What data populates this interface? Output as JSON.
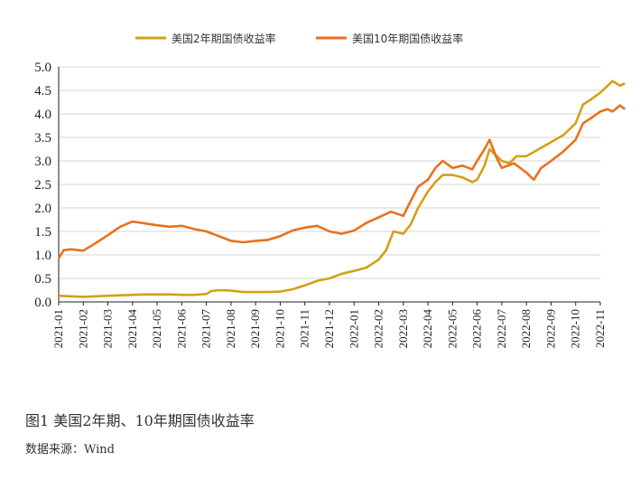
{
  "chart_data": {
    "type": "line",
    "title": "",
    "xlabel": "",
    "ylabel": "",
    "ylim": [
      0,
      5
    ],
    "yticks": [
      "0.0",
      "0.5",
      "1.0",
      "1.5",
      "2.0",
      "2.5",
      "3.0",
      "3.5",
      "4.0",
      "4.5",
      "5.0"
    ],
    "grid": "horizontal",
    "legend_position": "top",
    "categories": [
      "2021-01",
      "2021-02",
      "2021-03",
      "2021-04",
      "2021-05",
      "2021-06",
      "2021-07",
      "2021-08",
      "2021-09",
      "2021-10",
      "2021-11",
      "2021-12",
      "2022-01",
      "2022-02",
      "2022-03",
      "2022-04",
      "2022-05",
      "2022-06",
      "2022-07",
      "2022-08",
      "2022-09",
      "2022-10",
      "2022-11"
    ],
    "series": [
      {
        "name": "美国2年期国债收益率",
        "color": "#D4A017",
        "values": [
          [
            0,
            0.13
          ],
          [
            0.5,
            0.12
          ],
          [
            1,
            0.11
          ],
          [
            1.5,
            0.12
          ],
          [
            2,
            0.13
          ],
          [
            2.5,
            0.14
          ],
          [
            3,
            0.15
          ],
          [
            3.5,
            0.16
          ],
          [
            4,
            0.16
          ],
          [
            4.5,
            0.16
          ],
          [
            5,
            0.15
          ],
          [
            5.5,
            0.15
          ],
          [
            6,
            0.17
          ],
          [
            6.2,
            0.23
          ],
          [
            6.5,
            0.25
          ],
          [
            7,
            0.24
          ],
          [
            7.5,
            0.21
          ],
          [
            8,
            0.21
          ],
          [
            8.5,
            0.21
          ],
          [
            9,
            0.22
          ],
          [
            9.5,
            0.27
          ],
          [
            10,
            0.35
          ],
          [
            10.5,
            0.45
          ],
          [
            11,
            0.5
          ],
          [
            11.5,
            0.6
          ],
          [
            12,
            0.66
          ],
          [
            12.5,
            0.73
          ],
          [
            13,
            0.9
          ],
          [
            13.3,
            1.1
          ],
          [
            13.6,
            1.5
          ],
          [
            14,
            1.45
          ],
          [
            14.3,
            1.65
          ],
          [
            14.6,
            2.0
          ],
          [
            15,
            2.35
          ],
          [
            15.3,
            2.55
          ],
          [
            15.6,
            2.7
          ],
          [
            16,
            2.7
          ],
          [
            16.4,
            2.65
          ],
          [
            16.8,
            2.55
          ],
          [
            17,
            2.6
          ],
          [
            17.3,
            2.9
          ],
          [
            17.5,
            3.25
          ],
          [
            17.8,
            3.1
          ],
          [
            18,
            3.0
          ],
          [
            18.3,
            2.95
          ],
          [
            18.6,
            3.1
          ],
          [
            19,
            3.1
          ],
          [
            19.5,
            3.25
          ],
          [
            20,
            3.4
          ],
          [
            20.5,
            3.55
          ],
          [
            21,
            3.8
          ],
          [
            21.3,
            4.2
          ],
          [
            21.6,
            4.3
          ],
          [
            22,
            4.45
          ],
          [
            22.3,
            4.6
          ],
          [
            22.5,
            4.7
          ],
          [
            22.8,
            4.6
          ],
          [
            23,
            4.65
          ]
        ]
      },
      {
        "name": "美国10年期国债收益率",
        "color": "#E8711E",
        "values": [
          [
            0,
            0.93
          ],
          [
            0.2,
            1.1
          ],
          [
            0.5,
            1.12
          ],
          [
            1,
            1.09
          ],
          [
            1.5,
            1.25
          ],
          [
            2,
            1.42
          ],
          [
            2.5,
            1.6
          ],
          [
            3,
            1.71
          ],
          [
            3.5,
            1.67
          ],
          [
            4,
            1.63
          ],
          [
            4.5,
            1.6
          ],
          [
            5,
            1.62
          ],
          [
            5.5,
            1.55
          ],
          [
            6,
            1.5
          ],
          [
            6.5,
            1.4
          ],
          [
            7,
            1.3
          ],
          [
            7.5,
            1.27
          ],
          [
            8,
            1.3
          ],
          [
            8.5,
            1.32
          ],
          [
            9,
            1.4
          ],
          [
            9.5,
            1.52
          ],
          [
            10,
            1.58
          ],
          [
            10.5,
            1.62
          ],
          [
            11,
            1.5
          ],
          [
            11.5,
            1.45
          ],
          [
            12,
            1.52
          ],
          [
            12.5,
            1.68
          ],
          [
            13,
            1.8
          ],
          [
            13.5,
            1.92
          ],
          [
            14,
            1.83
          ],
          [
            14.3,
            2.15
          ],
          [
            14.6,
            2.45
          ],
          [
            15,
            2.6
          ],
          [
            15.3,
            2.85
          ],
          [
            15.6,
            3.0
          ],
          [
            16,
            2.85
          ],
          [
            16.4,
            2.9
          ],
          [
            16.8,
            2.82
          ],
          [
            17,
            3.0
          ],
          [
            17.3,
            3.25
          ],
          [
            17.5,
            3.45
          ],
          [
            17.8,
            3.05
          ],
          [
            18,
            2.85
          ],
          [
            18.5,
            2.95
          ],
          [
            19,
            2.75
          ],
          [
            19.3,
            2.6
          ],
          [
            19.6,
            2.85
          ],
          [
            20,
            3.0
          ],
          [
            20.5,
            3.2
          ],
          [
            21,
            3.45
          ],
          [
            21.3,
            3.8
          ],
          [
            21.6,
            3.9
          ],
          [
            22,
            4.05
          ],
          [
            22.3,
            4.1
          ],
          [
            22.5,
            4.05
          ],
          [
            22.8,
            4.18
          ],
          [
            23,
            4.1
          ]
        ]
      }
    ]
  },
  "caption": "图1 美国2年期、10年期国债收益率",
  "source": "数据来源：Wind"
}
